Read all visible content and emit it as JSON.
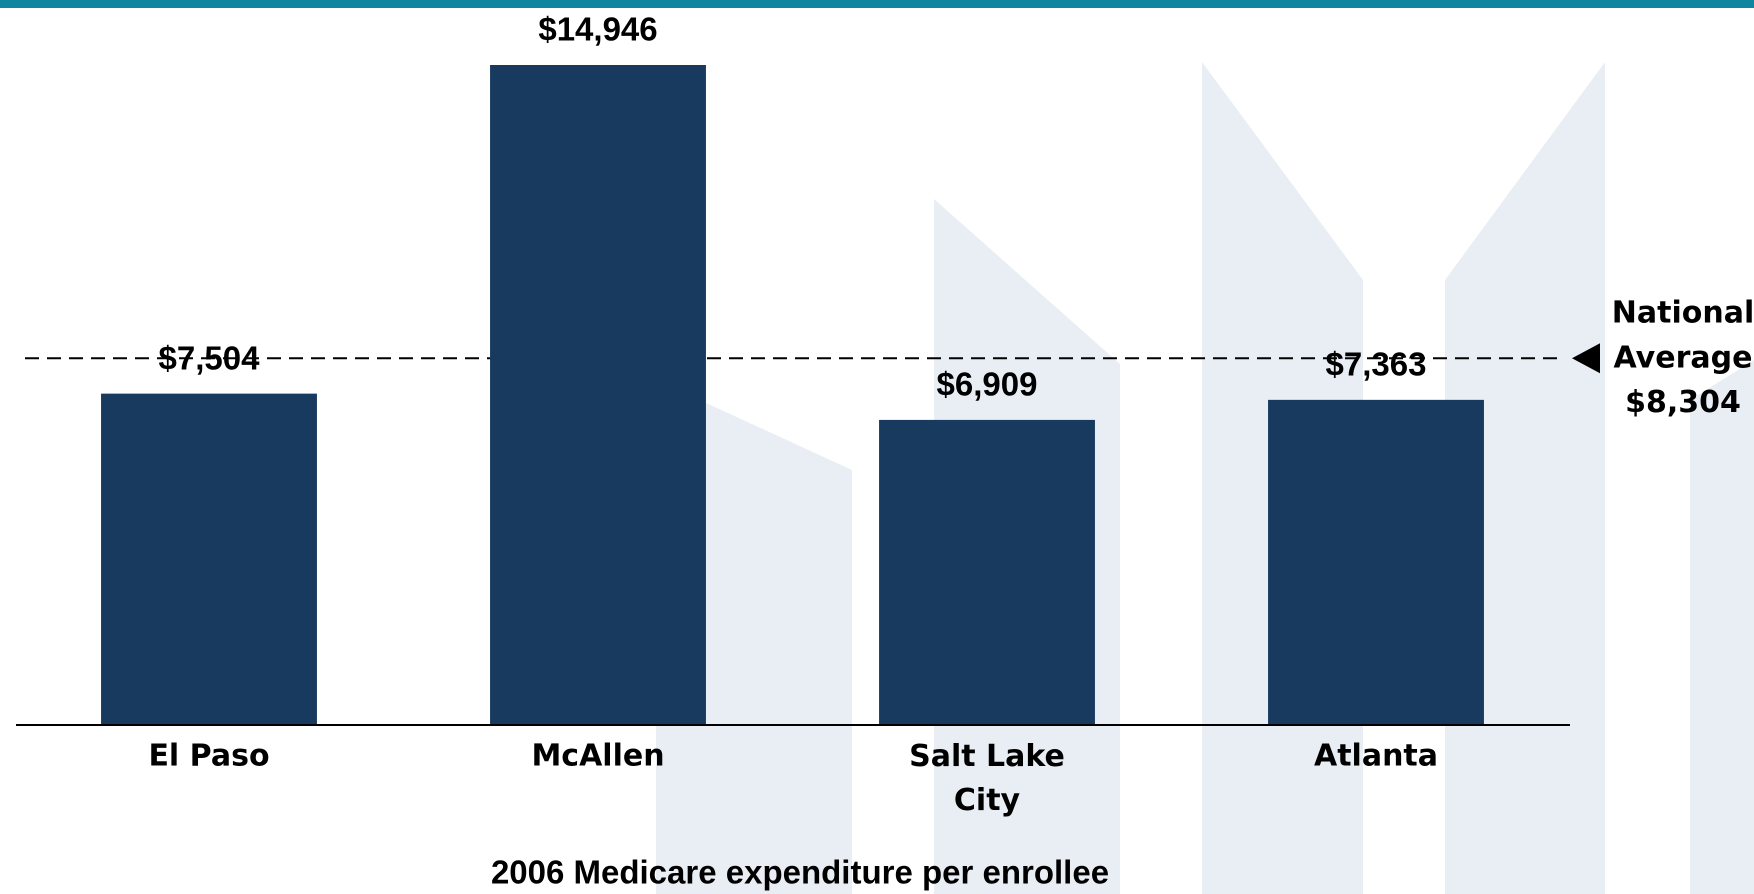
{
  "chart_data": {
    "type": "bar",
    "title": "2006 Medicare expenditure per enrollee",
    "categories": [
      "El Paso",
      "McAllen",
      "Salt Lake City",
      "Atlanta"
    ],
    "values": [
      7504,
      14946,
      6909,
      7363
    ],
    "value_labels": [
      "$7,504",
      "$14,946",
      "$6,909",
      "$7,363"
    ],
    "color": "#183a5f",
    "reference_line": {
      "label": "National Average",
      "value": 8304,
      "value_label": "$8,304"
    }
  }
}
